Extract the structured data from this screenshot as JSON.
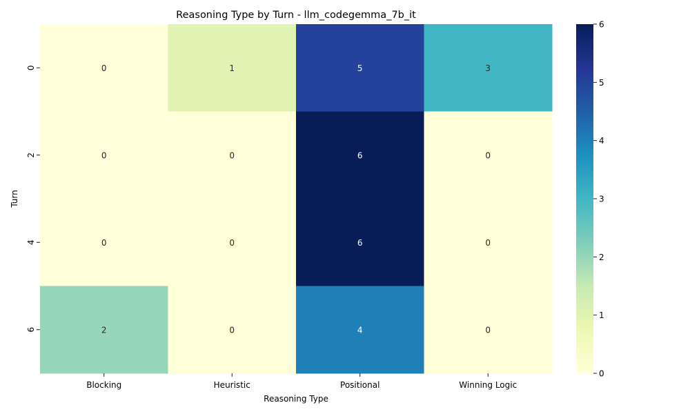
{
  "chart_data": {
    "type": "heatmap",
    "title": "Reasoning Type by Turn - llm_codegemma_7b_it",
    "xlabel": "Reasoning Type",
    "ylabel": "Turn",
    "columns": [
      "Blocking",
      "Heuristic",
      "Positional",
      "Winning Logic"
    ],
    "rows": [
      "0",
      "2",
      "4",
      "6"
    ],
    "values": [
      [
        0,
        1,
        5,
        3
      ],
      [
        0,
        0,
        6,
        0
      ],
      [
        0,
        0,
        6,
        0
      ],
      [
        2,
        0,
        4,
        0
      ]
    ],
    "colorbar": {
      "colormap": "YlGnBu",
      "range": [
        0,
        6
      ],
      "ticks": [
        "0",
        "1",
        "2",
        "3",
        "4",
        "5",
        "6"
      ]
    }
  }
}
